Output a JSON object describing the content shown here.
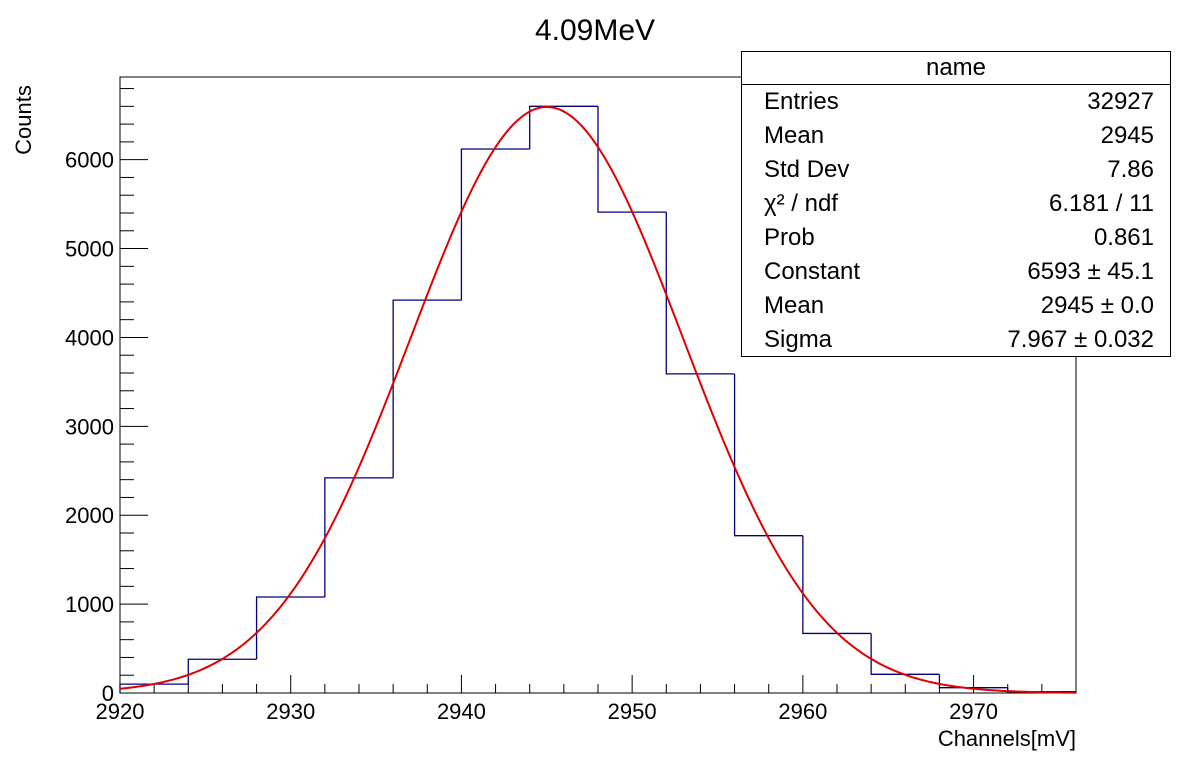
{
  "chart_data": {
    "type": "histogram",
    "title": "4.09MeV",
    "xlabel": "Channels[mV]",
    "ylabel": "Counts",
    "xlim": [
      2920,
      2976
    ],
    "ylim": [
      0,
      6930
    ],
    "xticks": [
      "2920",
      "2930",
      "2940",
      "2950",
      "2960",
      "2970"
    ],
    "yticks": [
      "0",
      "1000",
      "2000",
      "3000",
      "4000",
      "5000",
      "6000"
    ],
    "bin_edges": [
      2920,
      2924,
      2928,
      2932,
      2936,
      2940,
      2944,
      2948,
      2952,
      2956,
      2960,
      2964,
      2968,
      2972,
      2976
    ],
    "counts": [
      100,
      380,
      1080,
      2420,
      4420,
      6120,
      6600,
      5410,
      3590,
      1770,
      670,
      210,
      60,
      15
    ],
    "fit": {
      "function": "gaussian",
      "constant": 6593,
      "mean": 2945,
      "sigma": 7.967
    },
    "histogram_color": "#00007f",
    "fit_color": "#e00000",
    "stats_box": {
      "title": "name",
      "rows": [
        {
          "label": "Entries",
          "value": "32927"
        },
        {
          "label": "Mean",
          "value": "2945"
        },
        {
          "label": "Std Dev",
          "value": "7.86"
        },
        {
          "label": "χ² / ndf",
          "value": "6.181 / 11"
        },
        {
          "label": "Prob",
          "value": "0.861"
        },
        {
          "label": "Constant",
          "value": "6593 ± 45.1"
        },
        {
          "label": "Mean",
          "value": "2945 ± 0.0"
        },
        {
          "label": "Sigma",
          "value": "7.967 ± 0.032"
        }
      ]
    }
  }
}
